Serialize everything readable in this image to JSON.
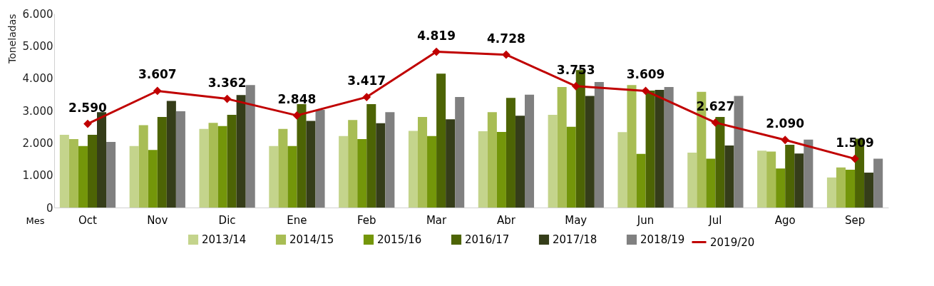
{
  "chart_data": {
    "type": "bar",
    "xlabel": "Mes",
    "ylabel": "Toneladas",
    "categories": [
      "Oct",
      "Nov",
      "Dic",
      "Ene",
      "Feb",
      "Mar",
      "Abr",
      "May",
      "Jun",
      "Jul",
      "Ago",
      "Sep"
    ],
    "series": [
      {
        "name": "2013/14",
        "color": "#c4d48c",
        "values": [
          2250,
          1900,
          2430,
          1900,
          2210,
          2370,
          2360,
          2870,
          2330,
          1700,
          1760,
          930
        ]
      },
      {
        "name": "2014/15",
        "color": "#a8bd54",
        "values": [
          2120,
          2550,
          2620,
          2430,
          2710,
          2800,
          2950,
          3730,
          3790,
          3580,
          1730,
          1240
        ]
      },
      {
        "name": "2015/16",
        "color": "#74960a",
        "values": [
          1900,
          1780,
          2520,
          1900,
          2120,
          2210,
          2340,
          2500,
          1660,
          1510,
          1210,
          1170
        ]
      },
      {
        "name": "2016/17",
        "color": "#4d6405",
        "values": [
          2250,
          2800,
          2870,
          3200,
          3200,
          4140,
          3390,
          4250,
          3620,
          2800,
          1940,
          2130
        ]
      },
      {
        "name": "2017/18",
        "color": "#353d19",
        "values": [
          2950,
          3300,
          3480,
          2680,
          2610,
          2730,
          2840,
          3450,
          3640,
          1920,
          1670,
          1080
        ]
      },
      {
        "name": "2018/19",
        "color": "#808080",
        "values": [
          2030,
          2980,
          3790,
          3020,
          2950,
          3420,
          3490,
          3880,
          3730,
          3450,
          2100,
          1510
        ]
      },
      {
        "name": "2019/20",
        "color": "#c00000",
        "type": "line",
        "marker": "diamond",
        "values": [
          2590,
          3607,
          3362,
          2848,
          3417,
          4819,
          4728,
          3753,
          3609,
          2627,
          2090,
          1509
        ],
        "value_labels": [
          "2.590",
          "3.607",
          "3.362",
          "2.848",
          "3.417",
          "4.819",
          "4.728",
          "3.753",
          "3.609",
          "2.627",
          "2.090",
          "1.509"
        ]
      }
    ],
    "ylim": [
      0,
      6000
    ],
    "yticks": [
      0,
      {
        "value": 1000,
        "label": "1.000"
      },
      {
        "value": 2000,
        "label": "2.000"
      },
      {
        "value": 3000,
        "label": "3.000"
      },
      {
        "value": 4000,
        "label": "4.000"
      },
      {
        "value": 5000,
        "label": "5.000"
      },
      {
        "value": 6000,
        "label": "6.000"
      }
    ],
    "grid": false,
    "legend": "bottom"
  }
}
